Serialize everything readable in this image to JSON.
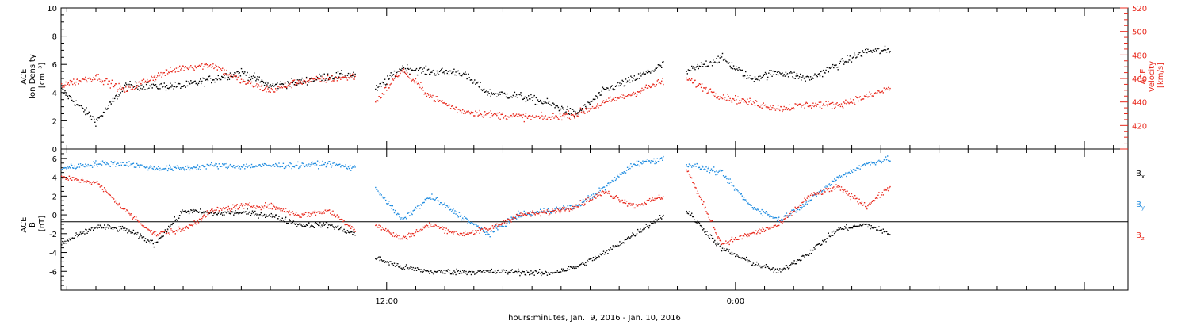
{
  "chart_data": [
    {
      "type": "scatter",
      "panel": "top",
      "title": "",
      "xlabel": "hours:minutes, Jan.  9, 2016 - Jan. 10, 2016",
      "x_ticklabels": [
        "12:00",
        "0:00"
      ],
      "x_unit": "hours since Jan 9 2016 00:00",
      "xlim": [
        0.8,
        37.5
      ],
      "left_axis": {
        "label_lines": [
          "ACE",
          "Ion Density",
          "[cm⁻³]"
        ],
        "ylim": [
          0,
          10
        ],
        "ticks": [
          0,
          2,
          4,
          6,
          8,
          10
        ],
        "color": "#000000"
      },
      "right_axis": {
        "label_lines": [
          "ACE",
          "Velocity",
          "[km/s]"
        ],
        "ylim": [
          400,
          520
        ],
        "ticks": [
          420,
          440,
          460,
          480,
          500,
          520
        ],
        "color": "#e8281c"
      },
      "grid": false,
      "series": [
        {
          "axis": "left",
          "color": "#000000",
          "segments": [
            {
              "x": [
                0.8,
                2,
                3,
                4,
                5,
                6,
                7,
                8,
                9,
                10,
                10.9
              ],
              "y": [
                4.2,
                2,
                4.5,
                4.5,
                4.5,
                5,
                5.5,
                4.5,
                4.8,
                5.2,
                5.3
              ]
            },
            {
              "x": [
                11.6,
                12.5,
                13.5,
                14.5,
                15.5,
                16.5,
                17.5,
                18.5,
                19.5,
                20.5,
                21.5
              ],
              "y": [
                4.2,
                5.8,
                5.5,
                5.5,
                4,
                3.8,
                3.3,
                2.5,
                4.2,
                5,
                6
              ]
            },
            {
              "x": [
                22.3,
                23.5,
                24.5,
                25.5,
                26.5,
                27.5,
                28.5,
                29.3
              ],
              "y": [
                5.5,
                6.5,
                5,
                5.5,
                5,
                6,
                7,
                7
              ]
            }
          ]
        },
        {
          "axis": "right",
          "color": "#e8281c",
          "segments": [
            {
              "x": [
                0.8,
                2,
                3,
                4,
                5,
                6,
                7,
                8,
                9,
                10,
                10.9
              ],
              "y": [
                455,
                462,
                450,
                462,
                470,
                472,
                458,
                450,
                458,
                460,
                462
              ]
            },
            {
              "x": [
                11.6,
                12.5,
                13.5,
                14.5,
                15.5,
                16.5,
                17.5,
                18.5,
                19.5,
                20.5,
                21.5
              ],
              "y": [
                440,
                468,
                445,
                433,
                430,
                428,
                427,
                430,
                440,
                448,
                458
              ]
            },
            {
              "x": [
                22.3,
                23.5,
                24.5,
                25.5,
                26.5,
                27.5,
                28.5,
                29.3
              ],
              "y": [
                460,
                445,
                440,
                435,
                438,
                438,
                445,
                452
              ]
            }
          ]
        }
      ]
    },
    {
      "type": "scatter",
      "panel": "bottom",
      "title": "",
      "xlabel": "hours:minutes, Jan.  9, 2016 - Jan. 10, 2016",
      "x_ticklabels": [
        "12:00",
        "0:00"
      ],
      "x_unit": "hours since Jan 9 2016 00:00",
      "xlim": [
        0.8,
        37.5
      ],
      "left_axis": {
        "label_lines": [
          "ACE",
          "B",
          "[nT]"
        ],
        "ylim": [
          -8,
          7
        ],
        "ticks": [
          -6,
          -4,
          -2,
          0,
          2,
          4,
          6
        ],
        "color": "#000000"
      },
      "zero_line": true,
      "grid": false,
      "legend_position": "right",
      "series": [
        {
          "name": "Bx",
          "color": "#000000",
          "segments": [
            {
              "x": [
                0.8,
                2,
                3,
                4,
                5,
                6,
                7,
                8,
                9,
                10,
                10.9
              ],
              "y": [
                -3,
                -1.2,
                -1.5,
                -3,
                0.5,
                0.2,
                0.3,
                0,
                -1,
                -1,
                -2
              ]
            },
            {
              "x": [
                11.6,
                12.5,
                13.5,
                14.5,
                15.5,
                16.5,
                17.5,
                18.5,
                19.5,
                20.5,
                21.5
              ],
              "y": [
                -4.5,
                -5.5,
                -6,
                -6,
                -6,
                -6,
                -6.2,
                -5.5,
                -4,
                -2,
                0
              ]
            },
            {
              "x": [
                22.3,
                23.5,
                24.5,
                25.5,
                26.5,
                27.5,
                28.5,
                29.3
              ],
              "y": [
                0.5,
                -3.5,
                -5,
                -6,
                -4,
                -1.5,
                -1,
                -2
              ]
            }
          ]
        },
        {
          "name": "By",
          "color": "#1f8ce0",
          "segments": [
            {
              "x": [
                0.8,
                2,
                3,
                4,
                5,
                6,
                7,
                8,
                9,
                10,
                10.9
              ],
              "y": [
                5,
                5.5,
                5.5,
                5,
                5,
                5.3,
                5.2,
                5.3,
                5.3,
                5.5,
                5
              ]
            },
            {
              "x": [
                11.6,
                12.5,
                13.5,
                14.5,
                15.5,
                16.5,
                17.5,
                18.5,
                19.5,
                20.5,
                21.5
              ],
              "y": [
                3,
                -0.5,
                2,
                0,
                -2,
                0,
                0.5,
                1,
                3,
                5.5,
                6
              ]
            },
            {
              "x": [
                22.3,
                23.5,
                24.5,
                25.5,
                26.5,
                27.5,
                28.5,
                29.3
              ],
              "y": [
                5.5,
                4.5,
                1,
                -0.5,
                1.5,
                4,
                5.5,
                6
              ]
            }
          ]
        },
        {
          "name": "Bz",
          "color": "#e8281c",
          "segments": [
            {
              "x": [
                0.8,
                2,
                3,
                4,
                5,
                6,
                7,
                8,
                9,
                10,
                10.9
              ],
              "y": [
                4,
                3.5,
                0.5,
                -2,
                -1.5,
                0.5,
                1,
                1,
                0,
                0.5,
                -1.5
              ]
            },
            {
              "x": [
                11.6,
                12.5,
                13.5,
                14.5,
                15.5,
                16.5,
                17.5,
                18.5,
                19.5,
                20.5,
                21.5
              ],
              "y": [
                -1,
                -2.5,
                -1,
                -2,
                -1.5,
                0,
                0.3,
                1,
                2.5,
                1,
                2
              ]
            },
            {
              "x": [
                22.3,
                23.5,
                24.5,
                25.5,
                26.5,
                27.5,
                28.5,
                29.3
              ],
              "y": [
                5,
                -3,
                -2,
                -1,
                2,
                3,
                1,
                3
              ]
            }
          ]
        }
      ]
    }
  ]
}
